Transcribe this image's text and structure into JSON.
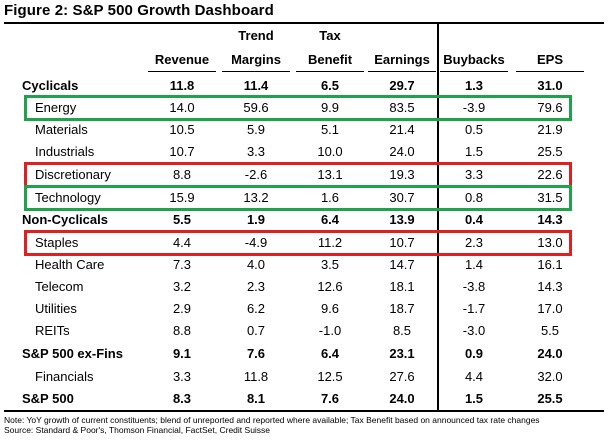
{
  "title": "Figure 2: S&P 500 Growth Dashboard",
  "columns": [
    {
      "line1": "",
      "line2": "Revenue"
    },
    {
      "line1": "Trend",
      "line2": "Margins"
    },
    {
      "line1": "Tax",
      "line2": "Benefit"
    },
    {
      "line1": "",
      "line2": "Earnings"
    },
    {
      "line1": "",
      "line2": "Buybacks"
    },
    {
      "line1": "",
      "line2": "EPS"
    }
  ],
  "rows": [
    {
      "label": "Cyclicals",
      "values": [
        "11.8",
        "11.4",
        "6.5",
        "29.7",
        "1.3",
        "31.0"
      ]
    },
    {
      "label": "Energy",
      "values": [
        "14.0",
        "59.6",
        "9.9",
        "83.5",
        "-3.9",
        "79.6"
      ]
    },
    {
      "label": "Materials",
      "values": [
        "10.5",
        "5.9",
        "5.1",
        "21.4",
        "0.5",
        "21.9"
      ]
    },
    {
      "label": "Industrials",
      "values": [
        "10.7",
        "3.3",
        "10.0",
        "24.0",
        "1.5",
        "25.5"
      ]
    },
    {
      "label": "Discretionary",
      "values": [
        "8.8",
        "-2.6",
        "13.1",
        "19.3",
        "3.3",
        "22.6"
      ]
    },
    {
      "label": "Technology",
      "values": [
        "15.9",
        "13.2",
        "1.6",
        "30.7",
        "0.8",
        "31.5"
      ]
    },
    {
      "label": "Non-Cyclicals",
      "values": [
        "5.5",
        "1.9",
        "6.4",
        "13.9",
        "0.4",
        "14.3"
      ]
    },
    {
      "label": "Staples",
      "values": [
        "4.4",
        "-4.9",
        "11.2",
        "10.7",
        "2.3",
        "13.0"
      ]
    },
    {
      "label": "Health Care",
      "values": [
        "7.3",
        "4.0",
        "3.5",
        "14.7",
        "1.4",
        "16.1"
      ]
    },
    {
      "label": "Telecom",
      "values": [
        "3.2",
        "2.3",
        "12.6",
        "18.1",
        "-3.8",
        "14.3"
      ]
    },
    {
      "label": "Utilities",
      "values": [
        "2.9",
        "6.2",
        "9.6",
        "18.7",
        "-1.7",
        "17.0"
      ]
    },
    {
      "label": "REITs",
      "values": [
        "8.8",
        "0.7",
        "-1.0",
        "8.5",
        "-3.0",
        "5.5"
      ]
    },
    {
      "label": "S&P 500 ex-Fins",
      "values": [
        "9.1",
        "7.6",
        "6.4",
        "23.1",
        "0.9",
        "24.0"
      ]
    },
    {
      "label": "Financials",
      "values": [
        "3.3",
        "11.8",
        "12.5",
        "27.6",
        "4.4",
        "32.0"
      ]
    },
    {
      "label": "S&P 500",
      "values": [
        "8.3",
        "8.1",
        "7.6",
        "24.0",
        "1.5",
        "25.5"
      ]
    }
  ],
  "highlights": [
    {
      "row": "Energy",
      "color": "#1fa34a"
    },
    {
      "row": "Discretionary",
      "color": "#e02020"
    },
    {
      "row": "Technology",
      "color": "#1fa34a"
    },
    {
      "row": "Staples",
      "color": "#e02020"
    }
  ],
  "notes": {
    "line1": "Note: YoY growth of current constituents; blend of unreported and reported where available; Tax Benefit based on announced tax rate changes",
    "line2": "Source: Standard & Poor's, Thomson Financial, FactSet, Credit Suisse"
  }
}
